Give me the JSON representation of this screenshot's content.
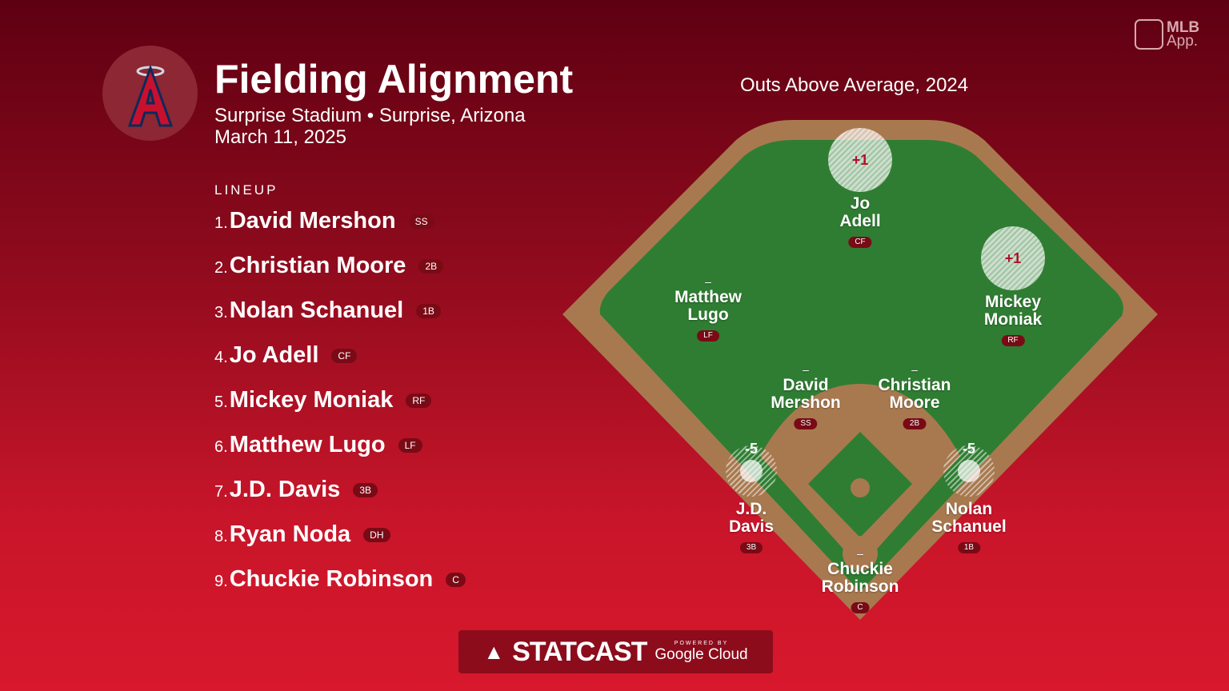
{
  "header": {
    "title": "Fielding Alignment",
    "venue": "Surprise Stadium • Surprise, Arizona",
    "date": "March 11, 2025",
    "team_logo": "angels-logo"
  },
  "brand": {
    "mlb": "MLB",
    "app": "App."
  },
  "metric_title": "Outs Above Average, 2024",
  "lineup": {
    "heading": "LINEUP",
    "items": [
      {
        "num": "1.",
        "name": "David Mershon",
        "pos": "SS"
      },
      {
        "num": "2.",
        "name": "Christian Moore",
        "pos": "2B"
      },
      {
        "num": "3.",
        "name": "Nolan Schanuel",
        "pos": "1B"
      },
      {
        "num": "4.",
        "name": "Jo Adell",
        "pos": "CF"
      },
      {
        "num": "5.",
        "name": "Mickey Moniak",
        "pos": "RF"
      },
      {
        "num": "6.",
        "name": "Matthew Lugo",
        "pos": "LF"
      },
      {
        "num": "7.",
        "name": "J.D. Davis",
        "pos": "3B"
      },
      {
        "num": "8.",
        "name": "Ryan Noda",
        "pos": "DH"
      },
      {
        "num": "9.",
        "name": "Chuckie Robinson",
        "pos": "C"
      }
    ]
  },
  "field": {
    "players": {
      "cf": {
        "first": "Jo",
        "last": "Adell",
        "pos": "CF",
        "oaa": "+1"
      },
      "rf": {
        "first": "Mickey",
        "last": "Moniak",
        "pos": "RF",
        "oaa": "+1"
      },
      "lf": {
        "first": "Matthew",
        "last": "Lugo",
        "pos": "LF",
        "oaa": "–"
      },
      "ss": {
        "first": "David",
        "last": "Mershon",
        "pos": "SS",
        "oaa": "–"
      },
      "b2": {
        "first": "Christian",
        "last": "Moore",
        "pos": "2B",
        "oaa": "–"
      },
      "b3": {
        "first": "J.D.",
        "last": "Davis",
        "pos": "3B",
        "oaa": "-5"
      },
      "b1": {
        "first": "Nolan",
        "last": "Schanuel",
        "pos": "1B",
        "oaa": "-5"
      },
      "c": {
        "first": "Chuckie",
        "last": "Robinson",
        "pos": "C",
        "oaa": "–"
      }
    }
  },
  "colors": {
    "grass": "#2f7d32",
    "dirt": "#a8794f",
    "accent": "#b0102a"
  },
  "footer": {
    "statcast": "STATCAST",
    "powered": "POWERED BY",
    "google": "Google Cloud"
  }
}
